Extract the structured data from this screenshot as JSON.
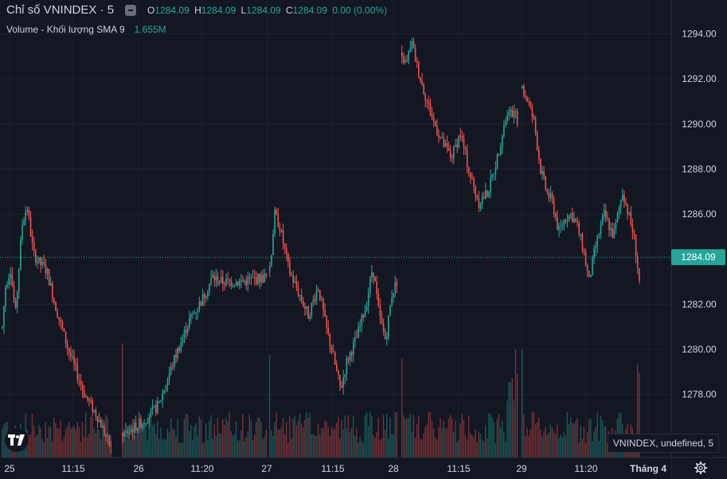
{
  "legend": {
    "symbol": "Chỉ số VNINDEX · 5",
    "o_label": "O",
    "o": "1284.09",
    "h_label": "H",
    "h": "1284.09",
    "l_label": "L",
    "l": "1284.09",
    "c_label": "C",
    "c": "1284.09",
    "change": "0.00 (0.00%)"
  },
  "volume_legend": {
    "label": "Volume - Khối lượng SMA 9",
    "value": "1.655M"
  },
  "tooltip": "VNINDEX, undefined, 5",
  "price_label": "1284.09",
  "icons": {
    "logo": "tradingview-logo-icon",
    "settings": "gear-icon",
    "hide": "hide-legend-icon"
  },
  "colors": {
    "background": "#131722",
    "up": "#26a69a",
    "down": "#ef5350",
    "grid": "#1e222d",
    "text": "#d1d4dc"
  },
  "chart_data": {
    "type": "candlestick",
    "title": "Chỉ số VNINDEX · 5",
    "y_ticks": [
      1278,
      1280,
      1282,
      1284,
      1286,
      1288,
      1290,
      1292,
      1294
    ],
    "y_tick_labels": [
      "1278.00",
      "1280.00",
      "1282.00",
      "1284.00",
      "1286.00",
      "1288.00",
      "1290.00",
      "1292.00",
      "1294.00"
    ],
    "ylim": [
      1275.2,
      1295.5
    ],
    "x_tick_labels": [
      "25",
      "11:15",
      "26",
      "11:20",
      "27",
      "11:15",
      "28",
      "11:15",
      "29",
      "11:20",
      "Tháng 4"
    ],
    "last_price": 1284.09,
    "grid": true,
    "sessions": [
      {
        "label": "25",
        "path": [
          [
            0,
            1281.0
          ],
          [
            2,
            1282.8
          ],
          [
            5,
            1283.6
          ],
          [
            8,
            1281.5
          ],
          [
            12,
            1285.5
          ],
          [
            15,
            1286.4
          ],
          [
            19,
            1284.2
          ],
          [
            23,
            1283.8
          ],
          [
            27,
            1283.5
          ],
          [
            32,
            1282.0
          ],
          [
            40,
            1280.0
          ],
          [
            50,
            1278.0
          ],
          [
            58,
            1277.0
          ],
          [
            66,
            1275.6
          ]
        ]
      },
      {
        "label": "26",
        "path": [
          [
            0,
            1276.2
          ],
          [
            8,
            1276.8
          ],
          [
            14,
            1277.5
          ],
          [
            20,
            1279.5
          ],
          [
            26,
            1281.3
          ],
          [
            31,
            1282.2
          ],
          [
            35,
            1283.2
          ],
          [
            38,
            1283.0
          ],
          [
            46,
            1283.0
          ],
          [
            56,
            1283.2
          ]
        ]
      },
      {
        "label": "27",
        "path": [
          [
            0,
            1283.5
          ],
          [
            3,
            1286.0
          ],
          [
            6,
            1285.5
          ],
          [
            12,
            1283.5
          ],
          [
            18,
            1282.5
          ],
          [
            24,
            1281.5
          ],
          [
            30,
            1282.8
          ],
          [
            35,
            1281.0
          ],
          [
            40,
            1279.5
          ],
          [
            44,
            1278.2
          ],
          [
            48,
            1279.5
          ],
          [
            54,
            1280.5
          ],
          [
            60,
            1282.0
          ],
          [
            64,
            1283.7
          ],
          [
            68,
            1281.5
          ],
          [
            72,
            1280.4
          ],
          [
            76,
            1282.5
          ],
          [
            79,
            1283.0
          ]
        ]
      },
      {
        "label": "28",
        "path": [
          [
            0,
            1293.0
          ],
          [
            3,
            1292.6
          ],
          [
            6,
            1293.7
          ],
          [
            10,
            1292.5
          ],
          [
            15,
            1291.3
          ],
          [
            20,
            1290.2
          ],
          [
            26,
            1289.2
          ],
          [
            32,
            1288.5
          ],
          [
            38,
            1289.6
          ],
          [
            44,
            1287.8
          ],
          [
            50,
            1286.5
          ],
          [
            56,
            1287.0
          ],
          [
            62,
            1288.5
          ],
          [
            67,
            1290.2
          ],
          [
            72,
            1290.5
          ],
          [
            75,
            1290.2
          ]
        ]
      },
      {
        "label": "29",
        "path": [
          [
            0,
            1291.5
          ],
          [
            4,
            1291.0
          ],
          [
            8,
            1290.0
          ],
          [
            12,
            1288.0
          ],
          [
            16,
            1287.0
          ],
          [
            20,
            1286.5
          ],
          [
            24,
            1285.2
          ],
          [
            28,
            1285.8
          ],
          [
            32,
            1286.0
          ],
          [
            36,
            1285.5
          ],
          [
            40,
            1284.5
          ],
          [
            44,
            1283.0
          ],
          [
            48,
            1284.5
          ],
          [
            54,
            1286.0
          ],
          [
            60,
            1285.0
          ],
          [
            66,
            1287.0
          ],
          [
            70,
            1286.0
          ],
          [
            74,
            1284.8
          ],
          [
            77,
            1283.0
          ]
        ]
      }
    ]
  }
}
